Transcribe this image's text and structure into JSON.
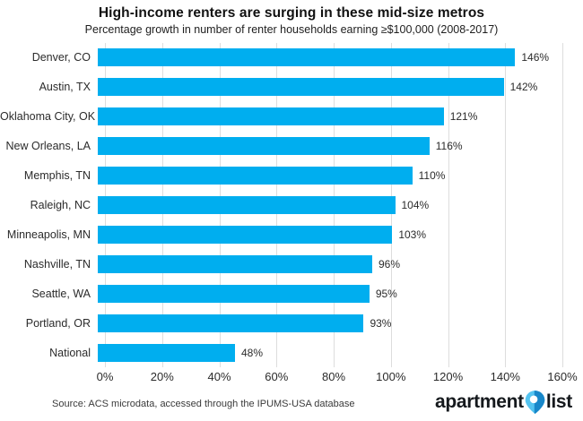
{
  "title": "High-income renters are surging in these mid-size metros",
  "subtitle": "Percentage growth in number of renter households earning ≥$100,000 (2008-2017)",
  "chart_data": {
    "type": "bar",
    "orientation": "horizontal",
    "title": "High-income renters are surging in these mid-size metros",
    "subtitle": "Percentage growth in number of renter households earning ≥$100,000 (2008-2017)",
    "categories": [
      "Denver, CO",
      "Austin, TX",
      "Oklahoma City, OK",
      "New Orleans, LA",
      "Memphis, TN",
      "Raleigh, NC",
      "Minneapolis, MN",
      "Nashville, TN",
      "Seattle, WA",
      "Portland, OR",
      "National"
    ],
    "values": [
      146,
      142,
      121,
      116,
      110,
      104,
      103,
      96,
      95,
      93,
      48
    ],
    "value_labels": [
      "146%",
      "142%",
      "121%",
      "116%",
      "110%",
      "104%",
      "103%",
      "96%",
      "95%",
      "93%",
      "48%"
    ],
    "x_ticks": [
      "0%",
      "20%",
      "40%",
      "60%",
      "80%",
      "100%",
      "120%",
      "140%",
      "160%"
    ],
    "xlim": [
      0,
      160
    ],
    "xlabel": "",
    "ylabel": "",
    "grid": true,
    "legend": "none",
    "bar_color": "#00AEEF",
    "gridline_color": "#dddddd"
  },
  "footer": {
    "source": "Source: ACS microdata, accessed through the IPUMS-USA database",
    "logo_left": "apartment",
    "logo_right": "list",
    "logo_pin_icon": "location-pin-icon",
    "pin_light_color": "#55C4F0",
    "pin_dark_color": "#1887C9"
  }
}
